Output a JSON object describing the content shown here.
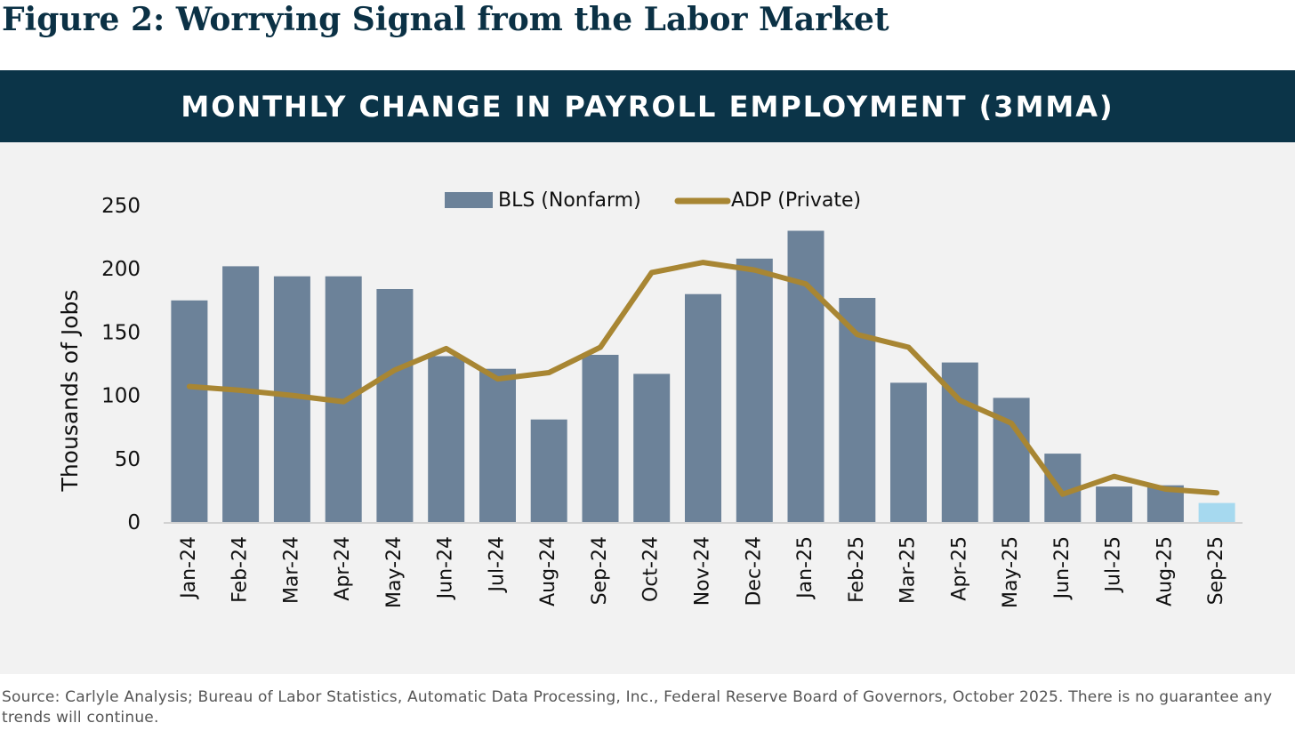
{
  "figure_title": "Figure 2: Worrying Signal from the Labor Market",
  "source_note": "Source: Carlyle Analysis; Bureau of Labor Statistics, Automatic Data Processing, Inc., Federal Reserve Board of Governors, October 2025. There is no guarantee any trends will continue.",
  "colors": {
    "bar": "#6c8299",
    "bar_highlight": "#a6d9ef",
    "line": "#a88633",
    "banner": "#0b3448",
    "background": "#f2f2f2"
  },
  "chart_data": {
    "type": "bar",
    "title": "MONTHLY CHANGE IN PAYROLL EMPLOYMENT (3MMA)",
    "xlabel": "",
    "ylabel": "Thousands of Jobs",
    "ylim": [
      0,
      250
    ],
    "yticks": [
      "0",
      "50",
      "100",
      "150",
      "200",
      "250"
    ],
    "grid": false,
    "legend_position": "top-center",
    "categories": [
      "Jan-24",
      "Feb-24",
      "Mar-24",
      "Apr-24",
      "May-24",
      "Jun-24",
      "Jul-24",
      "Aug-24",
      "Sep-24",
      "Oct-24",
      "Nov-24",
      "Dec-24",
      "Jan-25",
      "Feb-25",
      "Mar-25",
      "Apr-25",
      "May-25",
      "Jun-25",
      "Jul-25",
      "Aug-25",
      "Sep-25"
    ],
    "series": [
      {
        "name": "BLS (Nonfarm)",
        "type": "bar",
        "values": [
          175,
          202,
          194,
          194,
          184,
          131,
          121,
          81,
          132,
          117,
          180,
          208,
          230,
          177,
          110,
          126,
          98,
          54,
          28,
          29,
          15
        ],
        "highlight_index": 20
      },
      {
        "name": "ADP (Private)",
        "type": "line",
        "values": [
          107,
          104,
          100,
          95,
          120,
          137,
          113,
          118,
          138,
          197,
          205,
          199,
          188,
          148,
          138,
          96,
          78,
          22,
          36,
          26,
          23
        ]
      }
    ]
  }
}
